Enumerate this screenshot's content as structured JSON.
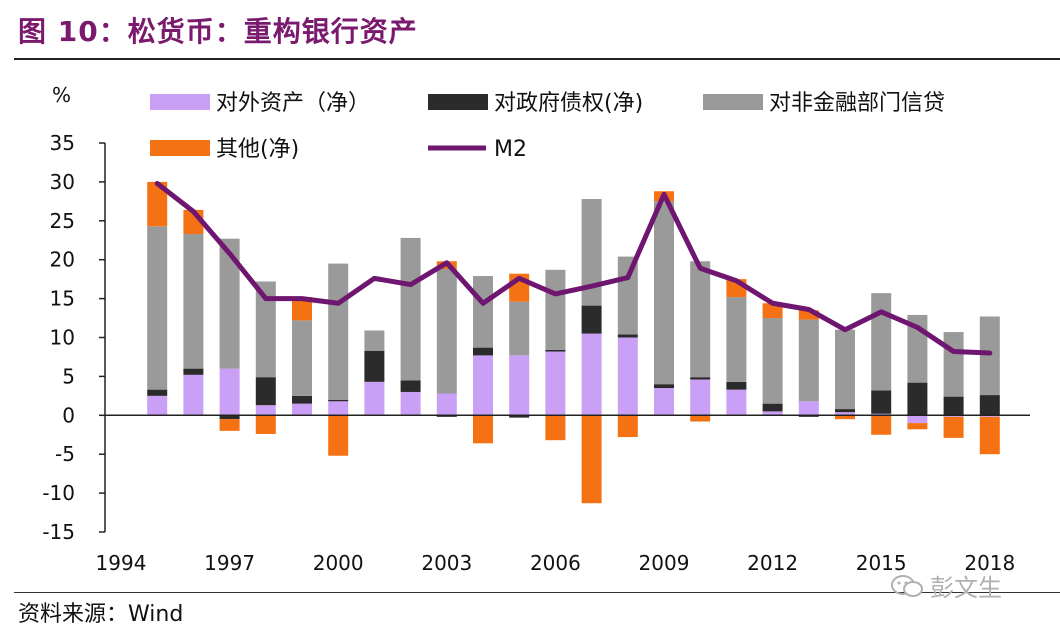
{
  "title": "图 10：松货币：重构银行资产",
  "source": "资料来源：Wind",
  "watermark": "彭文生",
  "colors": {
    "title": "#7a1a6e",
    "foreign": "#c9a0f5",
    "gov": "#2b2b2b",
    "nonfin": "#9a9a9a",
    "other": "#f57214",
    "m2": "#6e1670"
  },
  "chart_data": {
    "type": "bar",
    "stacked": true,
    "ylabel": "%",
    "ylim": [
      -15,
      35
    ],
    "yticks": [
      35,
      30,
      25,
      20,
      15,
      10,
      5,
      0,
      -5,
      -10,
      -15
    ],
    "x_tick_labels": [
      "1994",
      "1997",
      "2000",
      "2003",
      "2006",
      "2009",
      "2012",
      "2015",
      "2018"
    ],
    "categories": [
      "1995",
      "1996",
      "1997",
      "1998",
      "1999",
      "2000",
      "2001",
      "2002",
      "2003",
      "2004",
      "2005",
      "2006",
      "2007",
      "2008",
      "2009",
      "2010",
      "2011",
      "2012",
      "2013",
      "2014",
      "2015",
      "2016",
      "2017",
      "2018"
    ],
    "series": [
      {
        "name": "对外资产（净）",
        "key": "foreign",
        "type": "bar",
        "values": [
          2.5,
          5.2,
          6.0,
          1.3,
          1.5,
          1.8,
          4.3,
          3.0,
          2.8,
          7.7,
          7.7,
          8.2,
          10.5,
          10.0,
          3.5,
          4.6,
          3.3,
          0.5,
          1.8,
          0.4,
          0.2,
          -1.0,
          -0.2,
          -0.2
        ]
      },
      {
        "name": "对政府债权(净)",
        "key": "gov",
        "type": "bar",
        "values": [
          0.8,
          0.8,
          -0.5,
          3.6,
          1.0,
          0.2,
          4.0,
          1.5,
          -0.2,
          1.0,
          -0.3,
          0.2,
          3.6,
          0.4,
          0.5,
          0.3,
          1.0,
          1.0,
          -0.2,
          0.4,
          3.0,
          4.2,
          2.4,
          2.6
        ]
      },
      {
        "name": "对非金融部门信贷",
        "key": "nonfin",
        "type": "bar",
        "values": [
          21.0,
          17.3,
          16.7,
          12.3,
          9.7,
          17.5,
          2.6,
          18.3,
          16.0,
          9.2,
          6.9,
          10.3,
          13.7,
          10.0,
          23.5,
          14.9,
          10.9,
          11.0,
          10.5,
          10.2,
          12.5,
          8.7,
          8.3,
          10.1
        ]
      },
      {
        "name": "其他(净)",
        "key": "other",
        "type": "bar",
        "values": [
          5.7,
          3.1,
          -1.5,
          -2.4,
          3.0,
          -5.2,
          0,
          0,
          1.0,
          -3.6,
          3.6,
          -3.2,
          -11.3,
          -2.8,
          1.3,
          -0.8,
          2.3,
          1.9,
          1.2,
          -0.5,
          -2.5,
          -0.8,
          -2.7,
          -4.8
        ]
      },
      {
        "name": "M2",
        "key": "m2",
        "type": "line",
        "values": [
          29.8,
          26.2,
          20.8,
          15.0,
          15.0,
          14.4,
          17.6,
          16.8,
          19.6,
          14.4,
          17.6,
          15.6,
          16.6,
          17.7,
          28.4,
          18.9,
          17.3,
          14.4,
          13.6,
          11.0,
          13.3,
          11.3,
          8.2,
          8.0
        ]
      }
    ]
  }
}
